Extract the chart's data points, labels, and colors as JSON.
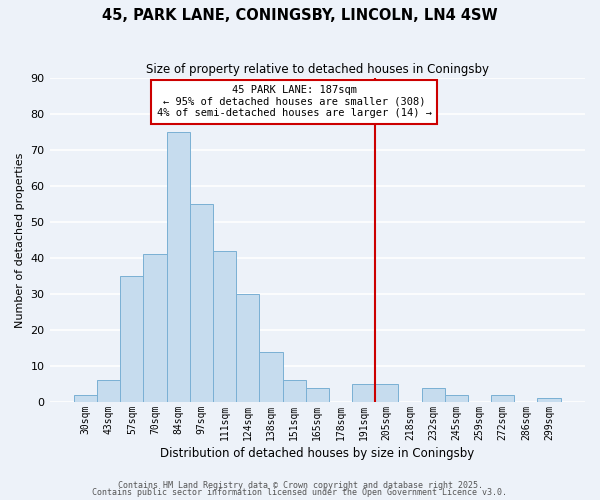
{
  "title": "45, PARK LANE, CONINGSBY, LINCOLN, LN4 4SW",
  "subtitle": "Size of property relative to detached houses in Coningsby",
  "xlabel": "Distribution of detached houses by size in Coningsby",
  "ylabel": "Number of detached properties",
  "bar_labels": [
    "30sqm",
    "43sqm",
    "57sqm",
    "70sqm",
    "84sqm",
    "97sqm",
    "111sqm",
    "124sqm",
    "138sqm",
    "151sqm",
    "165sqm",
    "178sqm",
    "191sqm",
    "205sqm",
    "218sqm",
    "232sqm",
    "245sqm",
    "259sqm",
    "272sqm",
    "286sqm",
    "299sqm"
  ],
  "bar_values": [
    2,
    6,
    35,
    41,
    75,
    55,
    42,
    30,
    14,
    6,
    4,
    0,
    5,
    5,
    0,
    4,
    2,
    0,
    2,
    0,
    1
  ],
  "bar_color": "#c6dcee",
  "bar_edge_color": "#7ab0d4",
  "ylim": [
    0,
    90
  ],
  "yticks": [
    0,
    10,
    20,
    30,
    40,
    50,
    60,
    70,
    80,
    90
  ],
  "vline_x_idx": 12.5,
  "vline_color": "#cc0000",
  "annotation_line1": "45 PARK LANE: 187sqm",
  "annotation_line2": "← 95% of detached houses are smaller (308)",
  "annotation_line3": "4% of semi-detached houses are larger (14) →",
  "background_color": "#edf2f9",
  "grid_color": "#ffffff",
  "footnote1": "Contains HM Land Registry data © Crown copyright and database right 2025.",
  "footnote2": "Contains public sector information licensed under the Open Government Licence v3.0."
}
